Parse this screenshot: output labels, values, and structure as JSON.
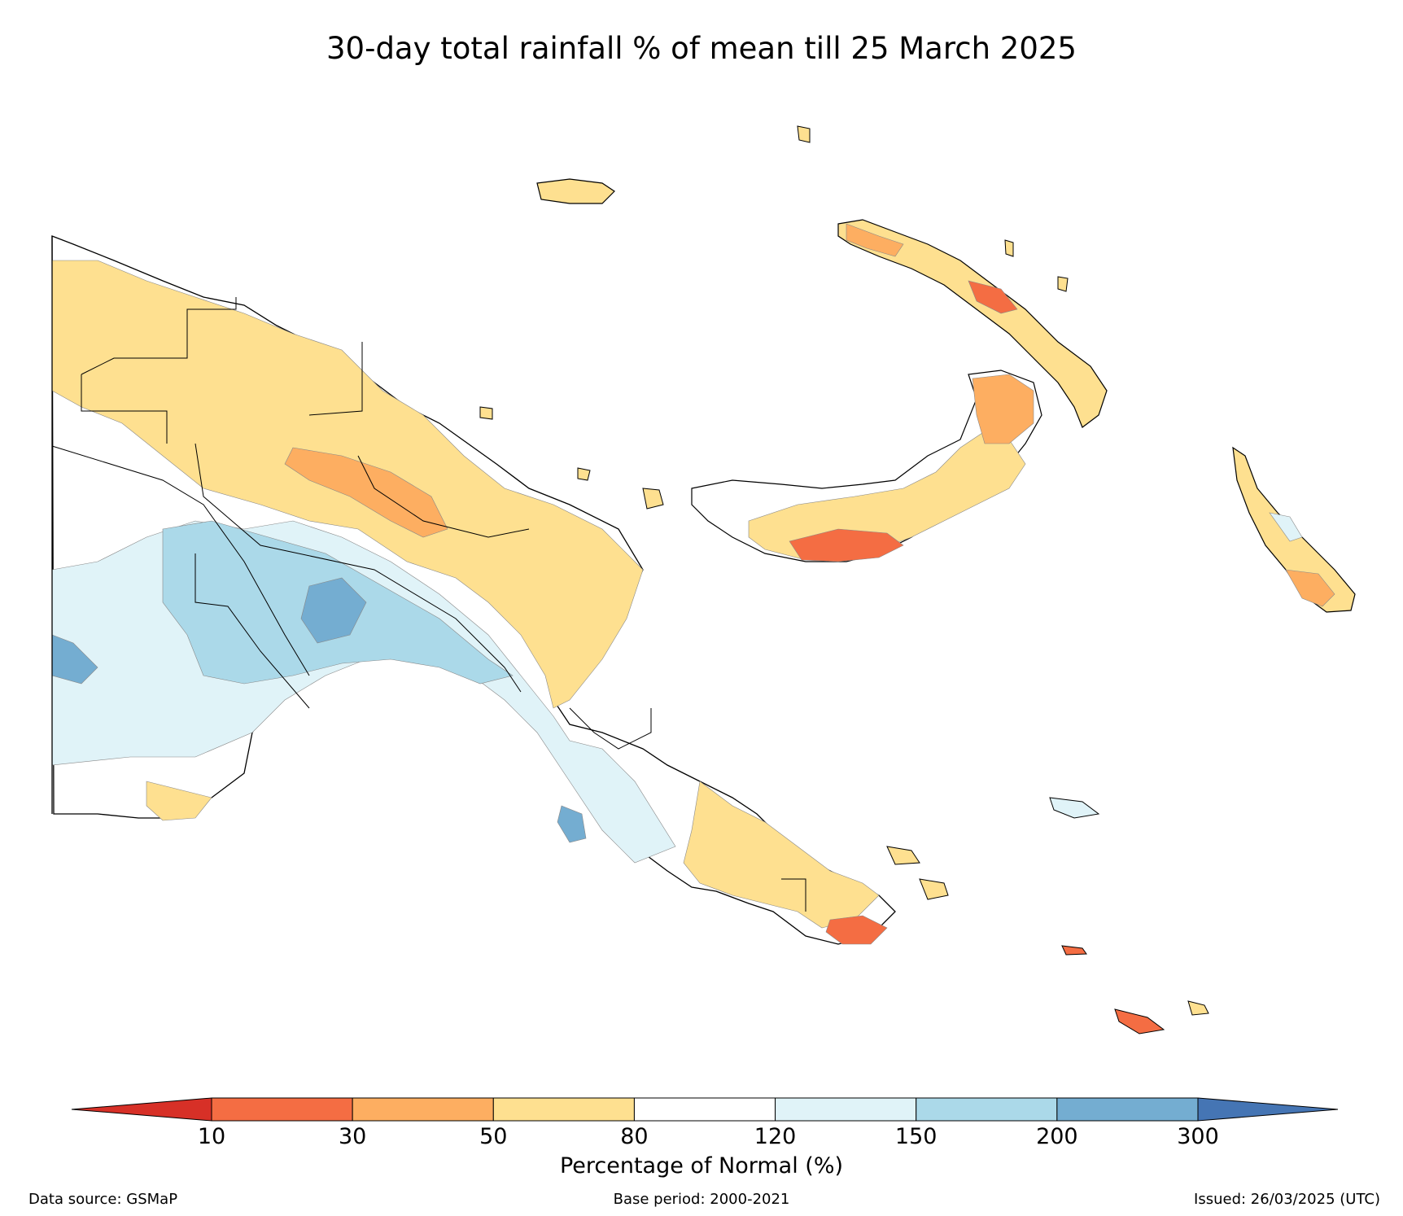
{
  "title": "30-day total rainfall % of mean till 25 March 2025",
  "map_region": "Papua New Guinea",
  "colorbar": {
    "label": "Percentage of Normal (%)",
    "ticks": [
      "10",
      "30",
      "50",
      "80",
      "120",
      "150",
      "200",
      "300"
    ],
    "bins": [
      {
        "range": "<10",
        "color": "#d73027"
      },
      {
        "range": "10-30",
        "color": "#f46d43"
      },
      {
        "range": "30-50",
        "color": "#fdae61"
      },
      {
        "range": "50-80",
        "color": "#fee090"
      },
      {
        "range": "80-120",
        "color": "#ffffff"
      },
      {
        "range": "120-150",
        "color": "#e0f3f8"
      },
      {
        "range": "150-200",
        "color": "#abd9e9"
      },
      {
        "range": "200-300",
        "color": "#74add1"
      },
      {
        "range": ">300",
        "color": "#4575b4"
      }
    ]
  },
  "footer": {
    "source": "Data source: GSMaP",
    "base_period": "Base period: 2000-2021",
    "issued": "Issued: 26/03/2025 (UTC)"
  }
}
